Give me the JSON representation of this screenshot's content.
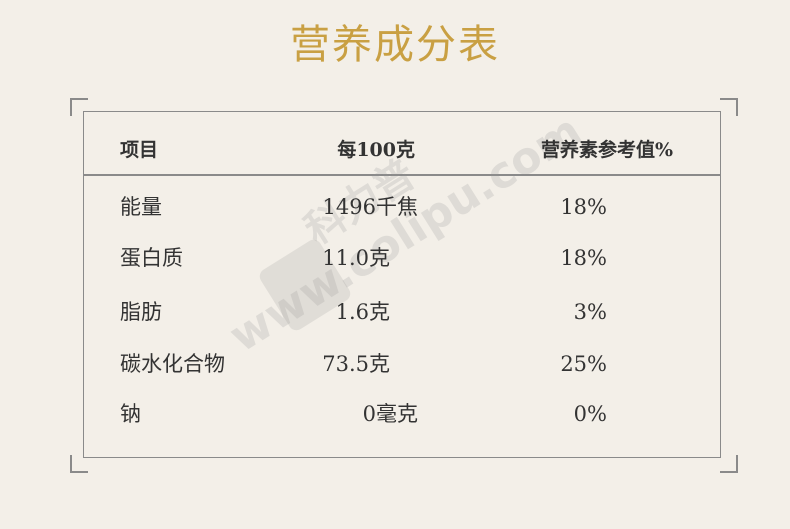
{
  "title": "营养成分表",
  "table": {
    "headers": [
      "项目",
      "每100克",
      "营养素参考值%"
    ],
    "rows": [
      [
        "能量",
        "1496千焦",
        "18%"
      ],
      [
        "蛋白质",
        "11.0克",
        "18%"
      ],
      [
        "脂肪",
        "1.6克",
        "3%"
      ],
      [
        "碳水化合物",
        "73.5克",
        "25%"
      ],
      [
        "钠",
        "0毫克",
        "0%"
      ]
    ]
  },
  "watermark": {
    "brand": "科力普",
    "url": "www.colipu.com"
  },
  "colors": {
    "title": "#c9a043",
    "background": "#f3efe8",
    "border": "#8a8a8a"
  }
}
